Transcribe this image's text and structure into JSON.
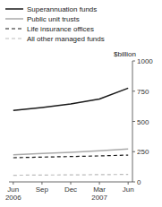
{
  "chart_data": {
    "type": "line",
    "y_label": "$billion",
    "categories": [
      "Jun\n2006",
      "Sep",
      "Dec",
      "Mar\n2007",
      "Jun"
    ],
    "series": [
      {
        "name": "Superannuation funds",
        "color": "#1a1a1a",
        "line_style": "solid",
        "values": [
          590,
          615,
          645,
          685,
          775
        ]
      },
      {
        "name": "Public unit trusts",
        "color": "#aaaaaa",
        "line_style": "solid",
        "values": [
          225,
          235,
          245,
          258,
          272
        ]
      },
      {
        "name": "Life insurance offices",
        "color": "#1a1a1a",
        "line_style": "dashed",
        "values": [
          200,
          205,
          210,
          215,
          222
        ]
      },
      {
        "name": "All other managed funds",
        "color": "#bbbbbb",
        "line_style": "dashed",
        "values": [
          55,
          57,
          58,
          60,
          62
        ]
      }
    ],
    "ylim": [
      0,
      1000
    ],
    "yticks": [
      0,
      250,
      500,
      750,
      1000
    ],
    "grid": false,
    "legend": "top left"
  }
}
